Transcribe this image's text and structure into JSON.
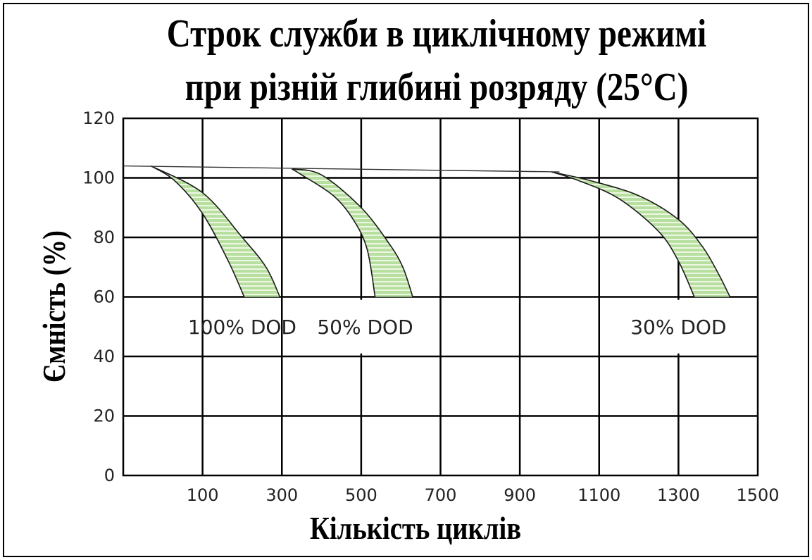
{
  "chart_data": {
    "type": "area",
    "title": "Строк служби в циклічному режимі при різній глибині розряду (25°C)",
    "title_lines": [
      "Строк служби в циклічному режимі",
      "при різній глибині розряду (25°C)"
    ],
    "xlabel": "Кількість циклів",
    "ylabel": "Ємність (%)",
    "xlim": [
      -100,
      1500
    ],
    "ylim": [
      0,
      120
    ],
    "x_ticks": [
      100,
      300,
      500,
      700,
      900,
      1100,
      1300,
      1500
    ],
    "y_ticks": [
      0,
      20,
      40,
      60,
      80,
      100,
      120
    ],
    "grid": true,
    "reference_line": [
      [
        -100,
        104
      ],
      [
        1000,
        102
      ]
    ],
    "series": [
      {
        "name": "100% DOD",
        "upper": [
          [
            -30,
            104
          ],
          [
            100,
            95
          ],
          [
            200,
            80
          ],
          [
            260,
            70
          ],
          [
            295,
            60
          ]
        ],
        "lower": [
          [
            -30,
            104
          ],
          [
            30,
            99
          ],
          [
            100,
            88
          ],
          [
            165,
            72
          ],
          [
            205,
            60
          ]
        ]
      },
      {
        "name": "50% DOD",
        "upper": [
          [
            325,
            103
          ],
          [
            400,
            101
          ],
          [
            500,
            90
          ],
          [
            570,
            78
          ],
          [
            605,
            70
          ],
          [
            630,
            60
          ]
        ],
        "lower": [
          [
            325,
            103
          ],
          [
            350,
            101
          ],
          [
            430,
            94
          ],
          [
            480,
            86
          ],
          [
            515,
            76
          ],
          [
            535,
            60
          ]
        ]
      },
      {
        "name": "30% DOD",
        "upper": [
          [
            980,
            102
          ],
          [
            1080,
            99
          ],
          [
            1200,
            94
          ],
          [
            1300,
            86
          ],
          [
            1360,
            77
          ],
          [
            1400,
            68
          ],
          [
            1430,
            60
          ]
        ],
        "lower": [
          [
            980,
            102
          ],
          [
            1050,
            99
          ],
          [
            1150,
            93
          ],
          [
            1250,
            82
          ],
          [
            1300,
            72
          ],
          [
            1340,
            60
          ]
        ]
      }
    ],
    "colors": {
      "band_fill": "#b7df9f",
      "band_stripe": "#eef7e4",
      "band_edge": "#1a1a1a",
      "grid": "#000000"
    }
  }
}
